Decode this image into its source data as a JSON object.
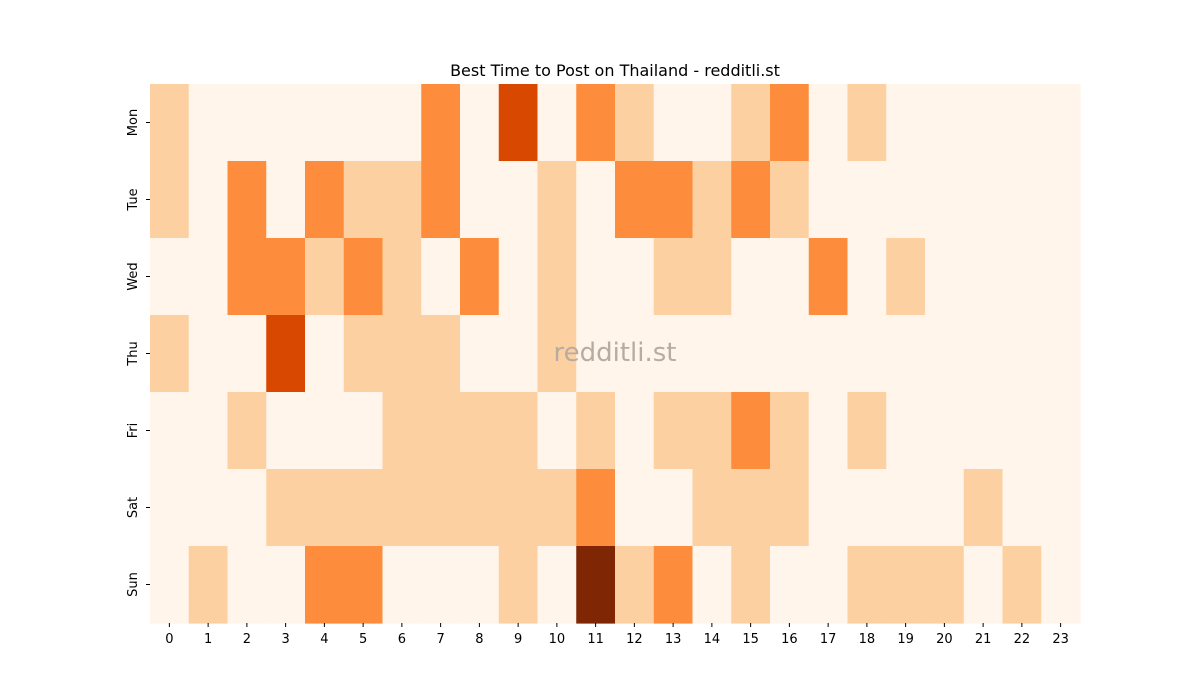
{
  "chart_data": {
    "type": "heatmap",
    "title": "Best Time to Post on Thailand - redditli.st",
    "xlabel": "",
    "ylabel": "",
    "x_categories": [
      "0",
      "1",
      "2",
      "3",
      "4",
      "5",
      "6",
      "7",
      "8",
      "9",
      "10",
      "11",
      "12",
      "13",
      "14",
      "15",
      "16",
      "17",
      "18",
      "19",
      "20",
      "21",
      "22",
      "23"
    ],
    "y_categories": [
      "Mon",
      "Tue",
      "Wed",
      "Thu",
      "Fri",
      "Sat",
      "Sun"
    ],
    "values": [
      [
        1,
        0,
        0,
        0,
        0,
        0,
        0,
        2,
        0,
        3,
        0,
        2,
        1,
        0,
        0,
        1,
        2,
        0,
        1,
        0,
        0,
        0,
        0,
        0
      ],
      [
        1,
        0,
        2,
        0,
        2,
        1,
        1,
        2,
        0,
        0,
        1,
        0,
        2,
        2,
        1,
        2,
        1,
        0,
        0,
        0,
        0,
        0,
        0,
        0
      ],
      [
        0,
        0,
        2,
        2,
        1,
        2,
        1,
        0,
        2,
        0,
        1,
        0,
        0,
        1,
        1,
        0,
        0,
        2,
        0,
        1,
        0,
        0,
        0,
        0
      ],
      [
        1,
        0,
        0,
        3,
        0,
        1,
        1,
        1,
        0,
        0,
        1,
        0,
        0,
        0,
        0,
        0,
        0,
        0,
        0,
        0,
        0,
        0,
        0,
        0
      ],
      [
        0,
        0,
        1,
        0,
        0,
        0,
        1,
        1,
        1,
        1,
        0,
        1,
        0,
        1,
        1,
        2,
        1,
        0,
        1,
        0,
        0,
        0,
        0,
        0
      ],
      [
        0,
        0,
        0,
        1,
        1,
        1,
        1,
        1,
        1,
        1,
        1,
        2,
        0,
        0,
        1,
        1,
        1,
        0,
        0,
        0,
        0,
        1,
        0,
        0
      ],
      [
        0,
        1,
        0,
        0,
        2,
        2,
        0,
        0,
        0,
        1,
        0,
        4,
        1,
        2,
        0,
        1,
        0,
        0,
        1,
        1,
        1,
        0,
        1,
        0
      ]
    ],
    "value_range": [
      0,
      4
    ],
    "colormap": "Oranges",
    "colors": {
      "0": "#fff5eb",
      "1": "#fdd0a2",
      "2": "#fd8d3c",
      "3": "#d94801",
      "4": "#7f2704"
    },
    "colorbar": false,
    "grid": false,
    "watermark": "redditli.st"
  }
}
